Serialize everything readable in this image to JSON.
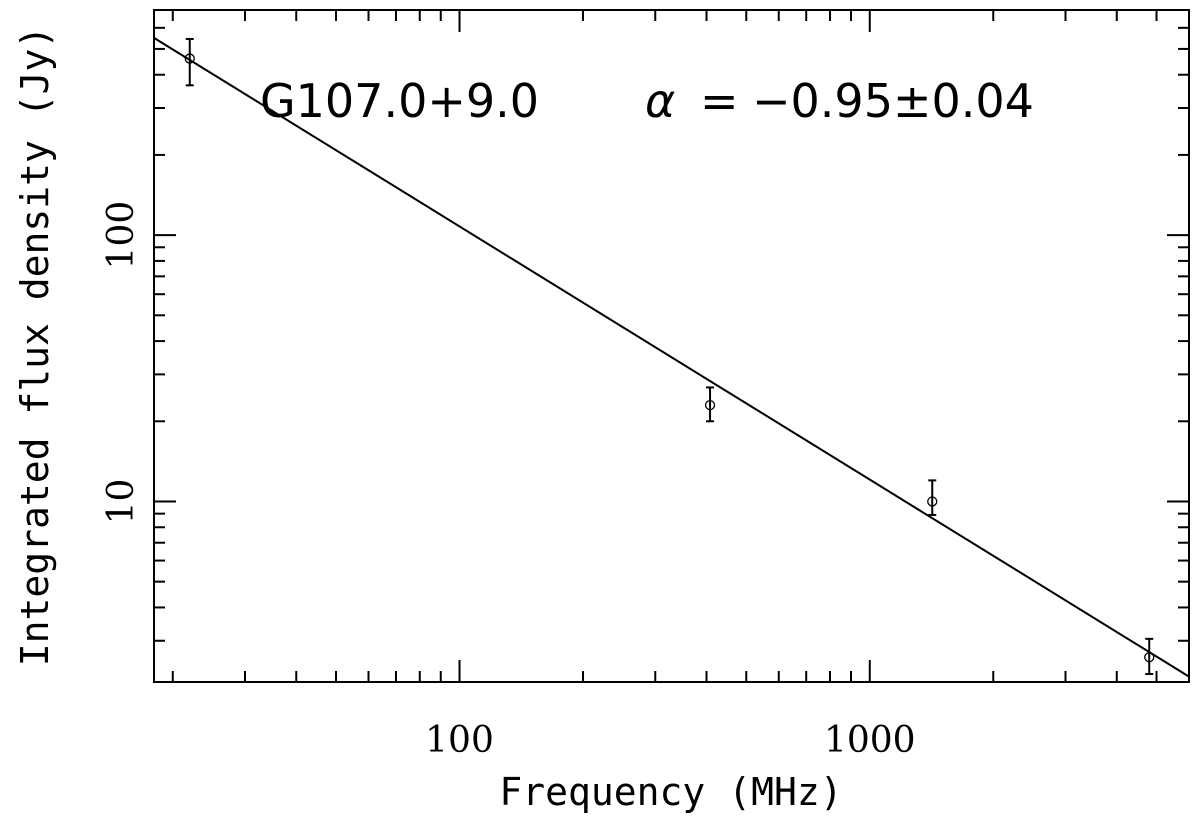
{
  "chart_data": {
    "type": "scatter",
    "scale": "log-log",
    "xlabel": "Frequency (MHz)",
    "ylabel": "Integrated flux density (Jy)",
    "xlim": [
      18,
      6000
    ],
    "ylim": [
      2.1,
      700
    ],
    "x_ticks": [
      100,
      1000
    ],
    "y_ticks": [
      10,
      100
    ],
    "annotation": {
      "name": "G107.0+9.0",
      "symbol": "α",
      "equals": "=",
      "value": "−0.95±0.04"
    },
    "points": [
      {
        "x": 22,
        "y": 460,
        "err_low": 95,
        "err_high": 85
      },
      {
        "x": 408,
        "y": 23,
        "err_low": 3,
        "err_high": 3.8
      },
      {
        "x": 1420,
        "y": 10,
        "err_low": 1.1,
        "err_high": 2
      },
      {
        "x": 4800,
        "y": 2.6,
        "err_low": 0.35,
        "err_high": 0.45
      }
    ],
    "fit": {
      "alpha": -0.95,
      "x": [
        18,
        6000
      ],
      "y": [
        550,
        2.2
      ]
    }
  }
}
